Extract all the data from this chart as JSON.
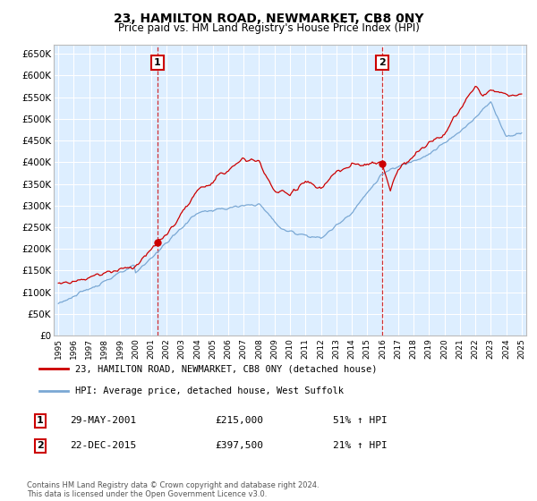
{
  "title": "23, HAMILTON ROAD, NEWMARKET, CB8 0NY",
  "subtitle": "Price paid vs. HM Land Registry's House Price Index (HPI)",
  "ylim": [
    0,
    670000
  ],
  "yticks": [
    0,
    50000,
    100000,
    150000,
    200000,
    250000,
    300000,
    350000,
    400000,
    450000,
    500000,
    550000,
    600000,
    650000
  ],
  "ytick_labels": [
    "£0",
    "£50K",
    "£100K",
    "£150K",
    "£200K",
    "£250K",
    "£300K",
    "£350K",
    "£400K",
    "£450K",
    "£500K",
    "£550K",
    "£600K",
    "£650K"
  ],
  "sale1_date": 2001.42,
  "sale1_price": 215000,
  "sale1_label": "1",
  "sale1_year_label": "29-MAY-2001",
  "sale1_price_label": "£215,000",
  "sale1_pct_label": "51% ↑ HPI",
  "sale2_date": 2015.97,
  "sale2_price": 397500,
  "sale2_label": "2",
  "sale2_year_label": "22-DEC-2015",
  "sale2_price_label": "£397,500",
  "sale2_pct_label": "21% ↑ HPI",
  "red_line_color": "#cc0000",
  "blue_line_color": "#7aa8d4",
  "bg_plot_color": "#ddeeff",
  "grid_color": "#ffffff",
  "legend1_label": "23, HAMILTON ROAD, NEWMARKET, CB8 0NY (detached house)",
  "legend2_label": "HPI: Average price, detached house, West Suffolk",
  "footer": "Contains HM Land Registry data © Crown copyright and database right 2024.\nThis data is licensed under the Open Government Licence v3.0."
}
